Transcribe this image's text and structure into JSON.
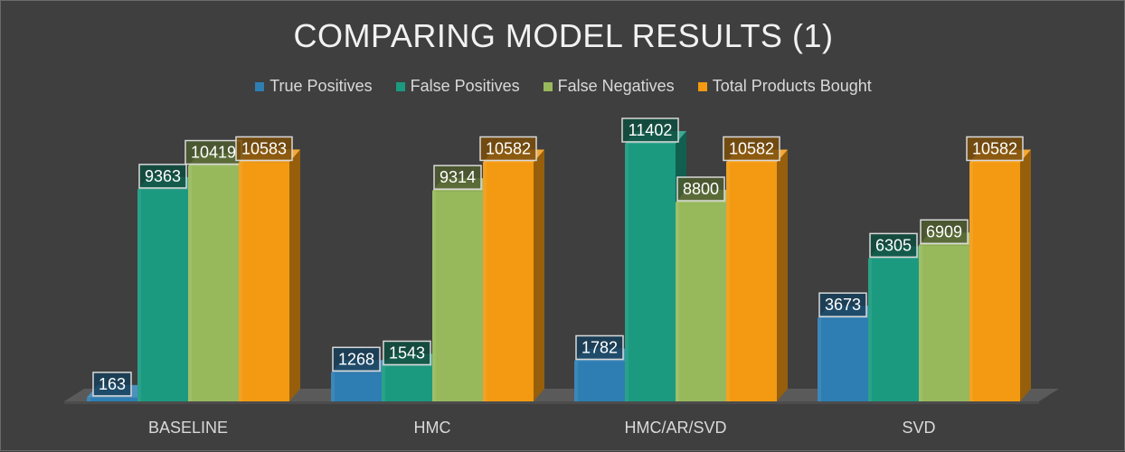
{
  "chart_data": {
    "type": "bar",
    "title": "COMPARING MODEL RESULTS (1)",
    "categories": [
      "BASELINE",
      "HMC",
      "HMC/AR/SVD",
      "SVD"
    ],
    "series": [
      {
        "name": "True Positives",
        "color": "#2e7eb4",
        "values": [
          163,
          1268,
          1782,
          3673
        ]
      },
      {
        "name": "False Positives",
        "color": "#1b9a80",
        "values": [
          9363,
          1543,
          11402,
          6305
        ]
      },
      {
        "name": "False Negatives",
        "color": "#98b85c",
        "values": [
          10419,
          9314,
          8800,
          6909
        ]
      },
      {
        "name": "Total Products Bought",
        "color": "#f39a12",
        "values": [
          10583,
          10582,
          10582,
          10582
        ]
      }
    ],
    "xlabel": "",
    "ylabel": "",
    "ylim": [
      0,
      12000
    ],
    "grid": false,
    "legend": "top-center"
  }
}
